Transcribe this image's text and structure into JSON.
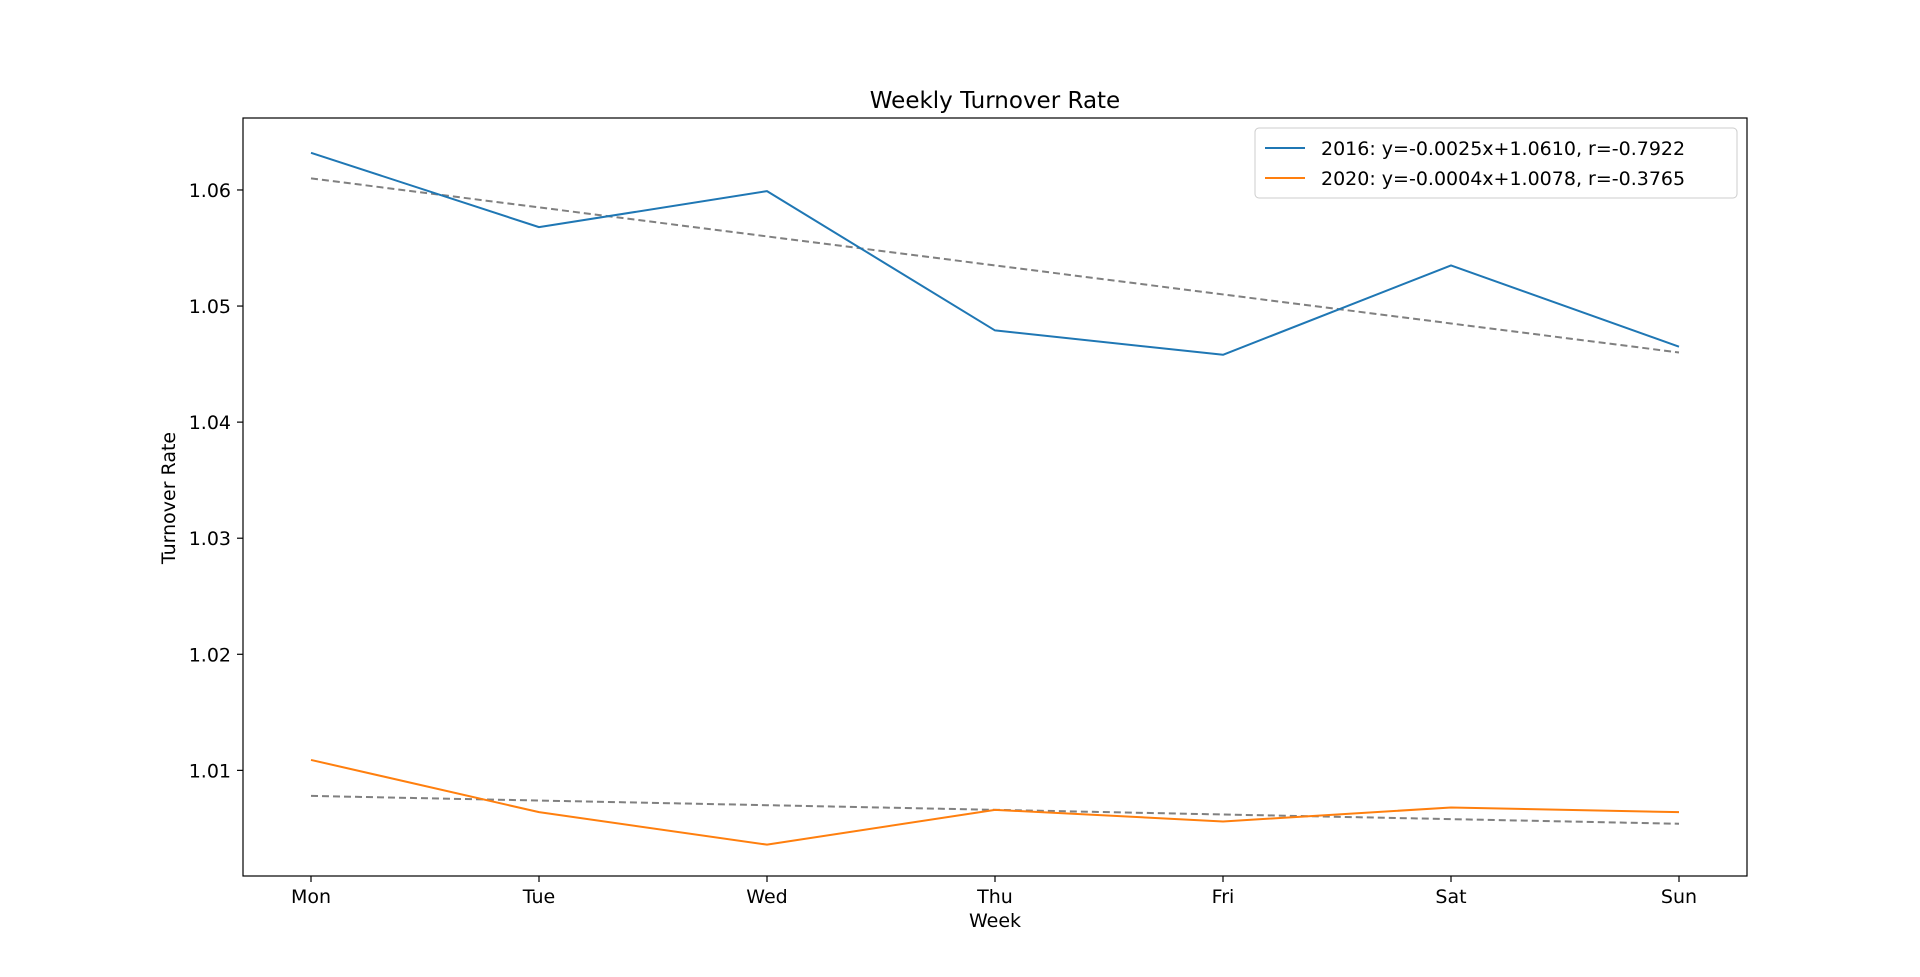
{
  "chart_data": {
    "type": "line",
    "title": "Weekly Turnover Rate",
    "xlabel": "Week",
    "ylabel": "Turnover Rate",
    "categories": [
      "Mon",
      "Tue",
      "Wed",
      "Thu",
      "Fri",
      "Sat",
      "Sun"
    ],
    "ylim": [
      1.0009,
      1.0662
    ],
    "yticks": [
      1.01,
      1.02,
      1.03,
      1.04,
      1.05,
      1.06
    ],
    "yticks_text": [
      "1.01",
      "1.02",
      "1.03",
      "1.04",
      "1.05",
      "1.06"
    ],
    "grid": false,
    "legend_position": "top-right",
    "series": [
      {
        "legend_label": "2016: y=-0.0025x+1.0610, r=-0.7922",
        "color": "#1f77b4",
        "values": [
          1.0632,
          1.0568,
          1.0599,
          1.0479,
          1.0458,
          1.0535,
          1.0465
        ],
        "trend": {
          "slope": -0.0025,
          "intercept": 1.061,
          "color": "#808080",
          "style": "dashed"
        }
      },
      {
        "legend_label": "2020: y=-0.0004x+1.0078, r=-0.3765",
        "color": "#ff7f0e",
        "values": [
          1.0109,
          1.0064,
          1.0036,
          1.0066,
          1.0056,
          1.0068,
          1.0064
        ],
        "trend": {
          "slope": -0.0004,
          "intercept": 1.0078,
          "color": "#808080",
          "style": "dashed"
        }
      }
    ]
  }
}
